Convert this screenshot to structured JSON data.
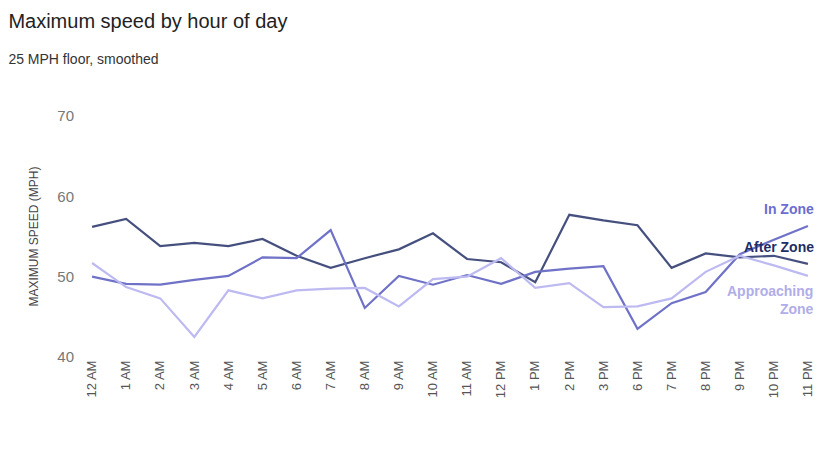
{
  "chart_data": {
    "type": "line",
    "title": "Maximum speed by hour of day",
    "subtitle": "25 MPH floor, smoothed",
    "y_label": "MAXIMUM SPEED (MPH)",
    "categories": [
      "12 AM",
      "1 AM",
      "2 AM",
      "3 AM",
      "4 AM",
      "5 AM",
      "6 AM",
      "7 AM",
      "8 AM",
      "9 AM",
      "10 AM",
      "11 AM",
      "12 PM",
      "1 PM",
      "2 PM",
      "3 PM",
      "6 PM",
      "7 PM",
      "8 PM",
      "9 PM",
      "10 PM",
      "11 PM"
    ],
    "series": [
      {
        "name": "After Zone",
        "color": "#46507f",
        "values": [
          56.2,
          57.2,
          53.8,
          54.2,
          53.8,
          54.7,
          52.6,
          51.1,
          52.3,
          53.4,
          55.4,
          52.2,
          51.8,
          49.3,
          57.7,
          57.0,
          56.4,
          51.1,
          52.9,
          52.4,
          52.6,
          51.6
        ]
      },
      {
        "name": "In Zone",
        "color": "#6f72c6",
        "values": [
          50.0,
          49.1,
          49.0,
          49.6,
          50.1,
          52.4,
          52.3,
          55.8,
          46.1,
          50.1,
          49.0,
          50.2,
          49.1,
          50.6,
          51.0,
          51.3,
          43.5,
          46.7,
          48.1,
          52.8,
          54.6,
          56.3
        ]
      },
      {
        "name": "Approaching Zone",
        "color": "#bdbaf2",
        "values": [
          51.7,
          48.7,
          47.3,
          42.5,
          48.3,
          47.3,
          48.3,
          48.5,
          48.6,
          46.3,
          49.7,
          50.0,
          52.3,
          48.6,
          49.2,
          46.2,
          46.3,
          47.3,
          50.6,
          52.6,
          51.4,
          50.1
        ]
      }
    ],
    "ylim": [
      40,
      70
    ],
    "yticks": [
      40,
      50,
      60,
      70
    ],
    "grid": false
  }
}
